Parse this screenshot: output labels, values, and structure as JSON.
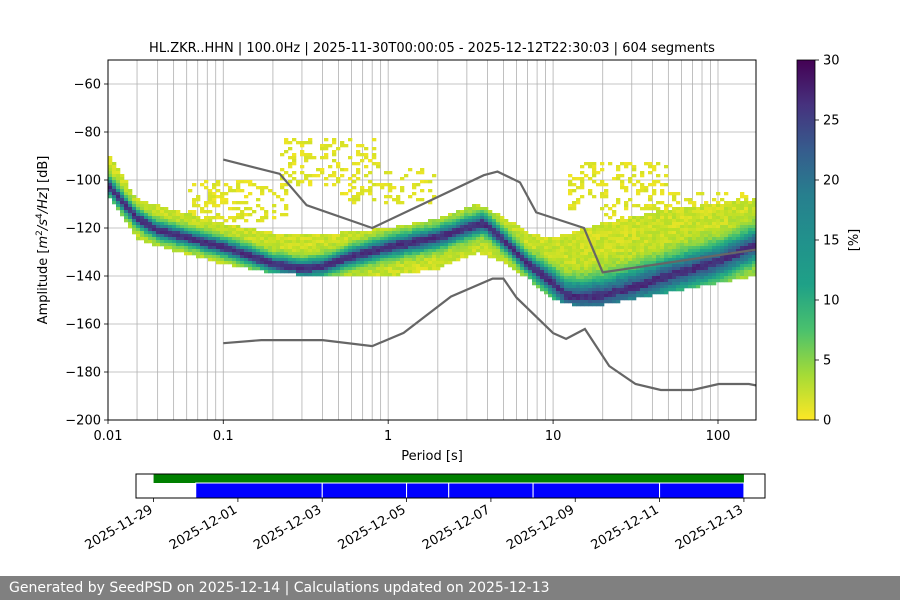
{
  "footer": {
    "text": "Generated by SeedPSD on 2025-12-14 | Calculations updated on 2025-12-13"
  },
  "chart_data": [
    {
      "type": "heatmap",
      "title": "HL.ZKR..HHN | 100.0Hz | 2025-11-30T00:00:05 - 2025-12-12T22:30:03 | 604 segments",
      "xlabel": "Period [s]",
      "ylabel_parts": {
        "base": "Amplitude [",
        "m": "m",
        "sup1": "2",
        "slash1": "/",
        "s": "s",
        "sup2": "4",
        "slash2": "/",
        "hz": "Hz",
        "end": "] [dB]"
      },
      "x_scale": "log",
      "xlim": [
        0.02,
        170
      ],
      "ylim": [
        -200,
        -50
      ],
      "x_ticks": [
        {
          "v": 0.01,
          "label": "0.01"
        },
        {
          "v": 0.1,
          "label": "0.1"
        },
        {
          "v": 1,
          "label": "1"
        },
        {
          "v": 10,
          "label": "10"
        },
        {
          "v": 100,
          "label": "100"
        }
      ],
      "y_ticks": [
        {
          "v": -60,
          "label": "−60"
        },
        {
          "v": -80,
          "label": "−80"
        },
        {
          "v": -100,
          "label": "−100"
        },
        {
          "v": -120,
          "label": "−120"
        },
        {
          "v": -140,
          "label": "−140"
        },
        {
          "v": -160,
          "label": "−160"
        },
        {
          "v": -180,
          "label": "−180"
        },
        {
          "v": -200,
          "label": "−200"
        }
      ],
      "grid": true,
      "colormap": "viridis_r",
      "colorbar": {
        "label": "[%]",
        "range": [
          0,
          30
        ],
        "ticks": [
          {
            "v": 0,
            "label": "0"
          },
          {
            "v": 5,
            "label": "5"
          },
          {
            "v": 10,
            "label": "10"
          },
          {
            "v": 15,
            "label": "15"
          },
          {
            "v": 20,
            "label": "20"
          },
          {
            "v": 25,
            "label": "25"
          },
          {
            "v": 30,
            "label": "30"
          }
        ]
      },
      "mode_curve": [
        [
          0.02,
          -102
        ],
        [
          0.025,
          -110
        ],
        [
          0.03,
          -116
        ],
        [
          0.04,
          -121
        ],
        [
          0.06,
          -124
        ],
        [
          0.1,
          -128
        ],
        [
          0.15,
          -132
        ],
        [
          0.2,
          -135
        ],
        [
          0.3,
          -137
        ],
        [
          0.4,
          -136
        ],
        [
          0.6,
          -132
        ],
        [
          1,
          -128
        ],
        [
          2,
          -124
        ],
        [
          3,
          -120
        ],
        [
          3.8,
          -118
        ],
        [
          5,
          -125
        ],
        [
          7,
          -135
        ],
        [
          10,
          -143
        ],
        [
          12,
          -148
        ],
        [
          15,
          -149
        ],
        [
          20,
          -148
        ],
        [
          30,
          -145
        ],
        [
          50,
          -140
        ],
        [
          100,
          -134
        ],
        [
          170,
          -127
        ]
      ],
      "band_upper": [
        [
          0.02,
          -88
        ],
        [
          0.03,
          -108
        ],
        [
          0.06,
          -114
        ],
        [
          0.1,
          -118
        ],
        [
          0.2,
          -122
        ],
        [
          0.5,
          -122
        ],
        [
          1,
          -120
        ],
        [
          2,
          -116
        ],
        [
          3.5,
          -110
        ],
        [
          5,
          -115
        ],
        [
          7,
          -122
        ],
        [
          10,
          -124
        ],
        [
          20,
          -118
        ],
        [
          50,
          -112
        ],
        [
          170,
          -108
        ]
      ],
      "band_lower": [
        [
          0.02,
          -106
        ],
        [
          0.03,
          -125
        ],
        [
          0.06,
          -131
        ],
        [
          0.1,
          -135
        ],
        [
          0.2,
          -139
        ],
        [
          0.5,
          -140
        ],
        [
          1,
          -140
        ],
        [
          2,
          -137
        ],
        [
          3.5,
          -130
        ],
        [
          5,
          -134
        ],
        [
          7,
          -141
        ],
        [
          10,
          -150
        ],
        [
          15,
          -153
        ],
        [
          20,
          -152
        ],
        [
          50,
          -147
        ],
        [
          170,
          -140
        ]
      ],
      "sparse_blobs": [
        {
          "x": [
            0.06,
            0.25
          ],
          "y": [
            -118,
            -100
          ],
          "density": 0.35
        },
        {
          "x": [
            0.22,
            0.9
          ],
          "y": [
            -103,
            -82
          ],
          "density": 0.3
        },
        {
          "x": [
            0.5,
            2.0
          ],
          "y": [
            -110,
            -95
          ],
          "density": 0.3
        },
        {
          "x": [
            12,
            50
          ],
          "y": [
            -112,
            -93
          ],
          "density": 0.35
        },
        {
          "x": [
            20,
            170
          ],
          "y": [
            -120,
            -105
          ],
          "density": 0.3
        }
      ],
      "nhnm": [
        [
          0.1,
          -168
        ],
        [
          0.17,
          -166.7
        ],
        [
          0.4,
          -166.7
        ],
        [
          0.8,
          -169.2
        ],
        [
          1.24,
          -163.7
        ],
        [
          2.4,
          -148.6
        ],
        [
          4.3,
          -141.1
        ],
        [
          5.0,
          -141.1
        ],
        [
          6.0,
          -149.0
        ],
        [
          10,
          -163.8
        ],
        [
          12,
          -166.2
        ],
        [
          15.6,
          -162.1
        ],
        [
          21.9,
          -177.5
        ],
        [
          31.6,
          -185.0
        ],
        [
          45,
          -187.5
        ],
        [
          70,
          -187.5
        ],
        [
          101,
          -185.0
        ],
        [
          154,
          -185.0
        ],
        [
          170,
          -185.6
        ]
      ],
      "nlnm_high": [
        [
          0.1,
          -91.5
        ],
        [
          0.22,
          -97.4
        ],
        [
          0.32,
          -110.5
        ],
        [
          0.8,
          -120.0
        ],
        [
          3.8,
          -98.0
        ],
        [
          4.6,
          -96.5
        ],
        [
          6.3,
          -101.0
        ],
        [
          7.9,
          -113.5
        ],
        [
          15.4,
          -120.0
        ],
        [
          20,
          -138.5
        ],
        [
          170,
          -129.0
        ]
      ]
    },
    {
      "type": "bar",
      "x_type": "date",
      "xlim": [
        "2025-11-28T14:00",
        "2025-12-13T12:00"
      ],
      "x_ticks": [
        "2025-11-29",
        "2025-12-01",
        "2025-12-03",
        "2025-12-05",
        "2025-12-07",
        "2025-12-09",
        "2025-12-11",
        "2025-12-13"
      ],
      "series": [
        {
          "color": "#008000",
          "spans": [
            [
              "2025-11-29T00:00",
              "2025-12-13T00:00"
            ]
          ]
        },
        {
          "color": "#0000ff",
          "spans": [
            [
              "2025-11-30T00:00",
              "2025-12-03T00:00"
            ],
            [
              "2025-12-03T00:00",
              "2025-12-05T00:00"
            ],
            [
              "2025-12-05T00:00",
              "2025-12-06T00:00"
            ],
            [
              "2025-12-06T00:00",
              "2025-12-08T00:00"
            ],
            [
              "2025-12-08T00:00",
              "2025-12-11T00:00"
            ],
            [
              "2025-12-11T00:00",
              "2025-12-13T00:00"
            ]
          ]
        }
      ]
    }
  ]
}
